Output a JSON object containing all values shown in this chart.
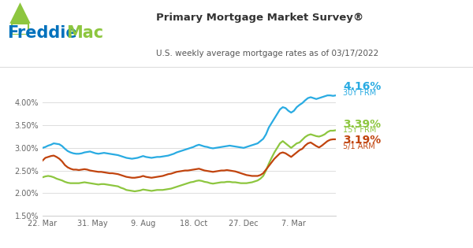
{
  "title": "Primary Mortgage Market Survey®",
  "subtitle": "U.S. weekly average mortgage rates as of 03/17/2022",
  "ylim": [
    1.5,
    4.35
  ],
  "yticks": [
    1.5,
    2.0,
    2.5,
    3.0,
    3.5,
    4.0
  ],
  "ytick_labels": [
    "1.50%",
    "2.00%",
    "2.50%",
    "3.00%",
    "3.50%",
    "4.00%"
  ],
  "xtick_labels": [
    "22. Mar",
    "31. May",
    "9. Aug",
    "18. Oct",
    "27. Dec",
    "7. Mar"
  ],
  "colors": {
    "30Y": "#29ABE2",
    "15Y": "#8DC63F",
    "ARM": "#C1440E"
  },
  "end_values": {
    "30Y": "4.16%",
    "15Y": "3.39%",
    "ARM": "3.19%"
  },
  "end_labels": {
    "30Y": "30Y FRM",
    "15Y": "15Y FRM",
    "ARM": "5/1 ARM"
  },
  "freddie_blue": "#0071BC",
  "freddie_green": "#8DC63F",
  "bg_color": "#FFFFFF",
  "plot_bg": "#FFFFFF",
  "line_width": 1.6,
  "y30Y": [
    3.0,
    3.02,
    3.05,
    3.07,
    3.1,
    3.09,
    3.08,
    3.04,
    2.98,
    2.93,
    2.9,
    2.88,
    2.87,
    2.87,
    2.88,
    2.9,
    2.91,
    2.92,
    2.9,
    2.88,
    2.87,
    2.88,
    2.89,
    2.88,
    2.87,
    2.86,
    2.85,
    2.84,
    2.82,
    2.8,
    2.78,
    2.77,
    2.76,
    2.77,
    2.78,
    2.8,
    2.82,
    2.8,
    2.79,
    2.78,
    2.79,
    2.8,
    2.8,
    2.81,
    2.82,
    2.83,
    2.85,
    2.87,
    2.9,
    2.92,
    2.94,
    2.96,
    2.98,
    3.0,
    3.02,
    3.05,
    3.07,
    3.05,
    3.03,
    3.02,
    3.0,
    2.99,
    3.0,
    3.01,
    3.02,
    3.03,
    3.04,
    3.05,
    3.04,
    3.03,
    3.02,
    3.01,
    3.0,
    3.02,
    3.04,
    3.06,
    3.08,
    3.1,
    3.15,
    3.2,
    3.3,
    3.45,
    3.55,
    3.65,
    3.75,
    3.85,
    3.9,
    3.88,
    3.82,
    3.78,
    3.82,
    3.9,
    3.95,
    3.99,
    4.05,
    4.1,
    4.12,
    4.1,
    4.08,
    4.1,
    4.12,
    4.14,
    4.16,
    4.16,
    4.15,
    4.16
  ],
  "y15Y": [
    2.35,
    2.37,
    2.38,
    2.37,
    2.35,
    2.32,
    2.3,
    2.28,
    2.25,
    2.23,
    2.22,
    2.22,
    2.22,
    2.22,
    2.23,
    2.24,
    2.23,
    2.22,
    2.21,
    2.2,
    2.19,
    2.2,
    2.2,
    2.19,
    2.18,
    2.17,
    2.16,
    2.15,
    2.12,
    2.1,
    2.07,
    2.06,
    2.05,
    2.04,
    2.05,
    2.06,
    2.08,
    2.07,
    2.06,
    2.05,
    2.06,
    2.07,
    2.07,
    2.07,
    2.08,
    2.09,
    2.1,
    2.12,
    2.14,
    2.16,
    2.18,
    2.2,
    2.22,
    2.24,
    2.25,
    2.27,
    2.28,
    2.27,
    2.25,
    2.24,
    2.22,
    2.21,
    2.22,
    2.23,
    2.24,
    2.24,
    2.25,
    2.25,
    2.24,
    2.24,
    2.23,
    2.22,
    2.22,
    2.22,
    2.23,
    2.24,
    2.26,
    2.28,
    2.32,
    2.38,
    2.5,
    2.65,
    2.78,
    2.9,
    3.0,
    3.1,
    3.15,
    3.1,
    3.05,
    3.0,
    3.05,
    3.1,
    3.12,
    3.18,
    3.24,
    3.28,
    3.3,
    3.28,
    3.26,
    3.25,
    3.27,
    3.3,
    3.35,
    3.38,
    3.38,
    3.39
  ],
  "yARM": [
    2.72,
    2.78,
    2.8,
    2.82,
    2.83,
    2.8,
    2.76,
    2.7,
    2.62,
    2.57,
    2.54,
    2.52,
    2.52,
    2.51,
    2.52,
    2.53,
    2.52,
    2.5,
    2.49,
    2.48,
    2.47,
    2.47,
    2.46,
    2.45,
    2.44,
    2.44,
    2.43,
    2.42,
    2.4,
    2.38,
    2.36,
    2.35,
    2.34,
    2.34,
    2.35,
    2.36,
    2.38,
    2.36,
    2.35,
    2.34,
    2.35,
    2.36,
    2.37,
    2.38,
    2.4,
    2.42,
    2.43,
    2.45,
    2.47,
    2.48,
    2.49,
    2.5,
    2.5,
    2.51,
    2.52,
    2.53,
    2.54,
    2.52,
    2.5,
    2.49,
    2.48,
    2.47,
    2.48,
    2.49,
    2.5,
    2.5,
    2.51,
    2.5,
    2.49,
    2.48,
    2.46,
    2.44,
    2.42,
    2.4,
    2.39,
    2.38,
    2.38,
    2.38,
    2.4,
    2.44,
    2.52,
    2.6,
    2.68,
    2.76,
    2.82,
    2.88,
    2.9,
    2.88,
    2.84,
    2.8,
    2.85,
    2.9,
    2.95,
    2.98,
    3.05,
    3.1,
    3.12,
    3.08,
    3.04,
    3.01,
    3.05,
    3.1,
    3.15,
    3.18,
    3.19,
    3.19
  ]
}
